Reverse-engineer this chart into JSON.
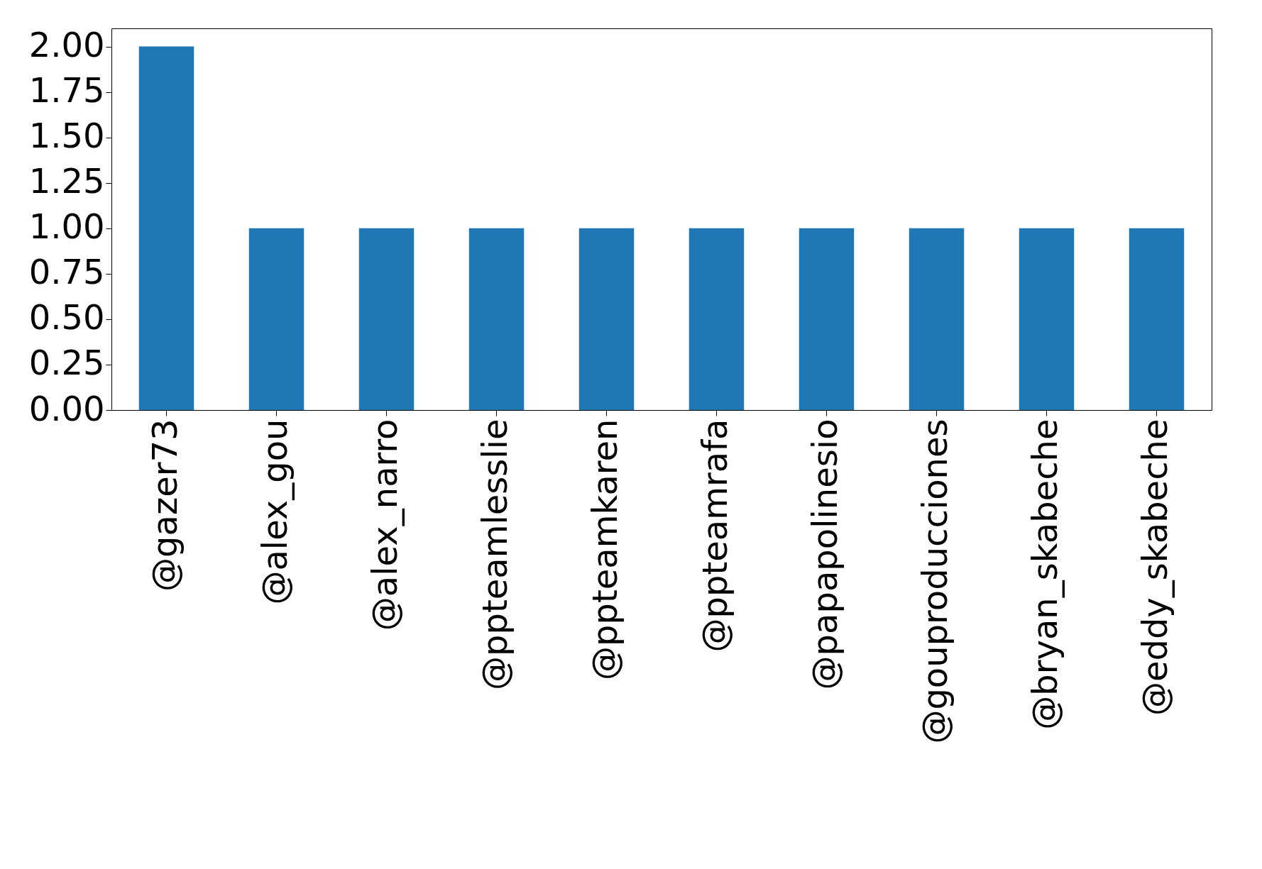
{
  "chart_data": {
    "type": "bar",
    "categories": [
      "@gazer73",
      "@alex_gou",
      "@alex_narro",
      "@ppteamlesslie",
      "@ppteamkaren",
      "@ppteamrafa",
      "@papapolinesio",
      "@gouproducciones",
      "@bryan_skabeche",
      "@eddy_skabeche"
    ],
    "values": [
      2,
      1,
      1,
      1,
      1,
      1,
      1,
      1,
      1,
      1
    ],
    "color": "#1f77b4",
    "ylim": [
      0,
      2.1
    ],
    "yticks": [
      {
        "value": 0,
        "label": "0.00"
      },
      {
        "value": 0.25,
        "label": "0.25"
      },
      {
        "value": 0.5,
        "label": "0.50"
      },
      {
        "value": 0.75,
        "label": "0.75"
      },
      {
        "value": 1,
        "label": "1.00"
      },
      {
        "value": 1.25,
        "label": "1.25"
      },
      {
        "value": 1.5,
        "label": "1.50"
      },
      {
        "value": 1.75,
        "label": "1.75"
      },
      {
        "value": 2,
        "label": "2.00"
      }
    ],
    "grid": false
  }
}
